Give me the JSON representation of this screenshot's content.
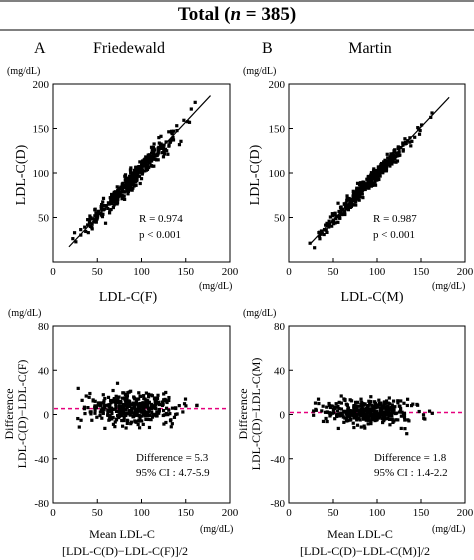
{
  "header": {
    "title_prefix": "Total (",
    "title_n": "n",
    "title_suffix": " = 385)"
  },
  "chart_data": [
    {
      "type": "scatter",
      "panel_letter": "A",
      "title": "Friedewald",
      "xlabel": "LDL-C(F)",
      "ylabel": "LDL-C(D)",
      "x_unit": "(mg/dL)",
      "y_unit": "(mg/dL)",
      "xlim": [
        0,
        200
      ],
      "ylim": [
        0,
        200
      ],
      "xticks": [
        0,
        50,
        100,
        150,
        200
      ],
      "yticks": [
        50,
        100,
        150,
        200
      ],
      "annotations": [
        "R = 0.974",
        "p < 0.001"
      ],
      "regression": {
        "x": [
          18,
          178
        ],
        "y": [
          17,
          187
        ]
      },
      "n_points": 385
    },
    {
      "type": "scatter",
      "panel_letter": "B",
      "title": "Martin",
      "xlabel": "LDL-C(M)",
      "ylabel": "LDL-C(D)",
      "x_unit": "(mg/dL)",
      "y_unit": "(mg/dL)",
      "xlim": [
        0,
        200
      ],
      "ylim": [
        0,
        200
      ],
      "xticks": [
        0,
        50,
        100,
        150,
        200
      ],
      "yticks": [
        50,
        100,
        150,
        200
      ],
      "annotations": [
        "R = 0.987",
        "p < 0.001"
      ],
      "regression": {
        "x": [
          24,
          182
        ],
        "y": [
          20,
          185
        ]
      },
      "n_points": 385
    },
    {
      "type": "scatter",
      "xlabel_lines": [
        "Mean LDL-C",
        "[LDL-C(D)−LDL-C(F)]/2"
      ],
      "ylabel_lines": [
        "Difference",
        "LDL-C(D)−LDL-C(F)"
      ],
      "x_unit": "(mg/dL)",
      "y_unit": "(mg/dL)",
      "xlim": [
        0,
        200
      ],
      "ylim": [
        -80,
        80
      ],
      "xticks": [
        0,
        50,
        100,
        150,
        200
      ],
      "yticks": [
        -80,
        -40,
        0,
        40,
        80
      ],
      "mean_line": 5.3,
      "mean_line_color": "#e6007e",
      "annotations": [
        "Difference = 5.3",
        "95% CI : 4.7-5.9"
      ],
      "n_points": 385
    },
    {
      "type": "scatter",
      "xlabel_lines": [
        "Mean LDL-C",
        "[LDL-C(D)−LDL-C(M)]/2"
      ],
      "ylabel_lines": [
        "Difference",
        "LDL-C(D)−LDL-C(M)"
      ],
      "x_unit": "(mg/dL)",
      "y_unit": "(mg/dL)",
      "xlim": [
        0,
        200
      ],
      "ylim": [
        -80,
        80
      ],
      "xticks": [
        0,
        50,
        100,
        150,
        200
      ],
      "yticks": [
        -80,
        -40,
        0,
        40,
        80
      ],
      "mean_line": 1.8,
      "mean_line_color": "#e6007e",
      "annotations": [
        "Difference = 1.8",
        "95% CI : 1.4-2.2"
      ],
      "n_points": 385
    }
  ]
}
